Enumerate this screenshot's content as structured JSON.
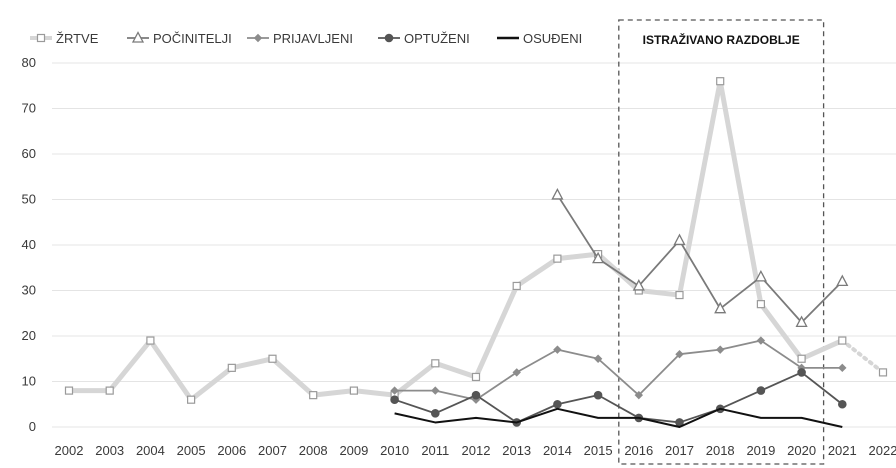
{
  "chart_data": {
    "type": "line",
    "title": "",
    "xlabel": "",
    "ylabel": "",
    "x": [
      "2002",
      "2003",
      "2004",
      "2005",
      "2006",
      "2007",
      "2008",
      "2009",
      "2010",
      "2011",
      "2012",
      "2013",
      "2014",
      "2015",
      "2016",
      "2017",
      "2018",
      "2019",
      "2020",
      "2021",
      "2022"
    ],
    "ylim": [
      0,
      80
    ],
    "yticks": [
      "0",
      "10",
      "20",
      "30",
      "40",
      "50",
      "60",
      "70",
      "80"
    ],
    "grid": true,
    "legend_position": "top-left",
    "series": [
      {
        "name": "ŽRTVE",
        "color": "#d6d6d6",
        "marker": "square",
        "values": [
          8,
          8,
          19,
          6,
          13,
          15,
          7,
          8,
          7,
          14,
          11,
          31,
          37,
          38,
          30,
          29,
          76,
          27,
          15,
          19,
          12
        ]
      },
      {
        "name": "POČINITELJI",
        "color": "#7a7a7a",
        "marker": "triangle",
        "values": [
          null,
          null,
          null,
          null,
          null,
          null,
          null,
          null,
          null,
          null,
          null,
          null,
          51,
          37,
          31,
          41,
          26,
          33,
          23,
          32,
          null
        ]
      },
      {
        "name": "PRIJAVLJENI",
        "color": "#8c8c8c",
        "marker": "diamond",
        "values": [
          null,
          null,
          null,
          null,
          null,
          null,
          null,
          null,
          8,
          8,
          6,
          12,
          17,
          15,
          7,
          16,
          17,
          19,
          13,
          13,
          null
        ]
      },
      {
        "name": "OPTUŽENI",
        "color": "#555555",
        "marker": "circle",
        "values": [
          null,
          null,
          null,
          null,
          null,
          null,
          null,
          null,
          6,
          3,
          7,
          1,
          5,
          7,
          2,
          1,
          4,
          8,
          12,
          5,
          null
        ]
      },
      {
        "name": "OSUĐENI",
        "color": "#111111",
        "marker": "none",
        "values": [
          null,
          null,
          null,
          null,
          null,
          null,
          null,
          null,
          3,
          1,
          2,
          1,
          4,
          2,
          2,
          0,
          4,
          2,
          2,
          0,
          null
        ]
      }
    ],
    "annotation": {
      "label": "ISTRAŽIVANO RAZDOBLJE",
      "from": "2016",
      "to": "2020"
    }
  }
}
